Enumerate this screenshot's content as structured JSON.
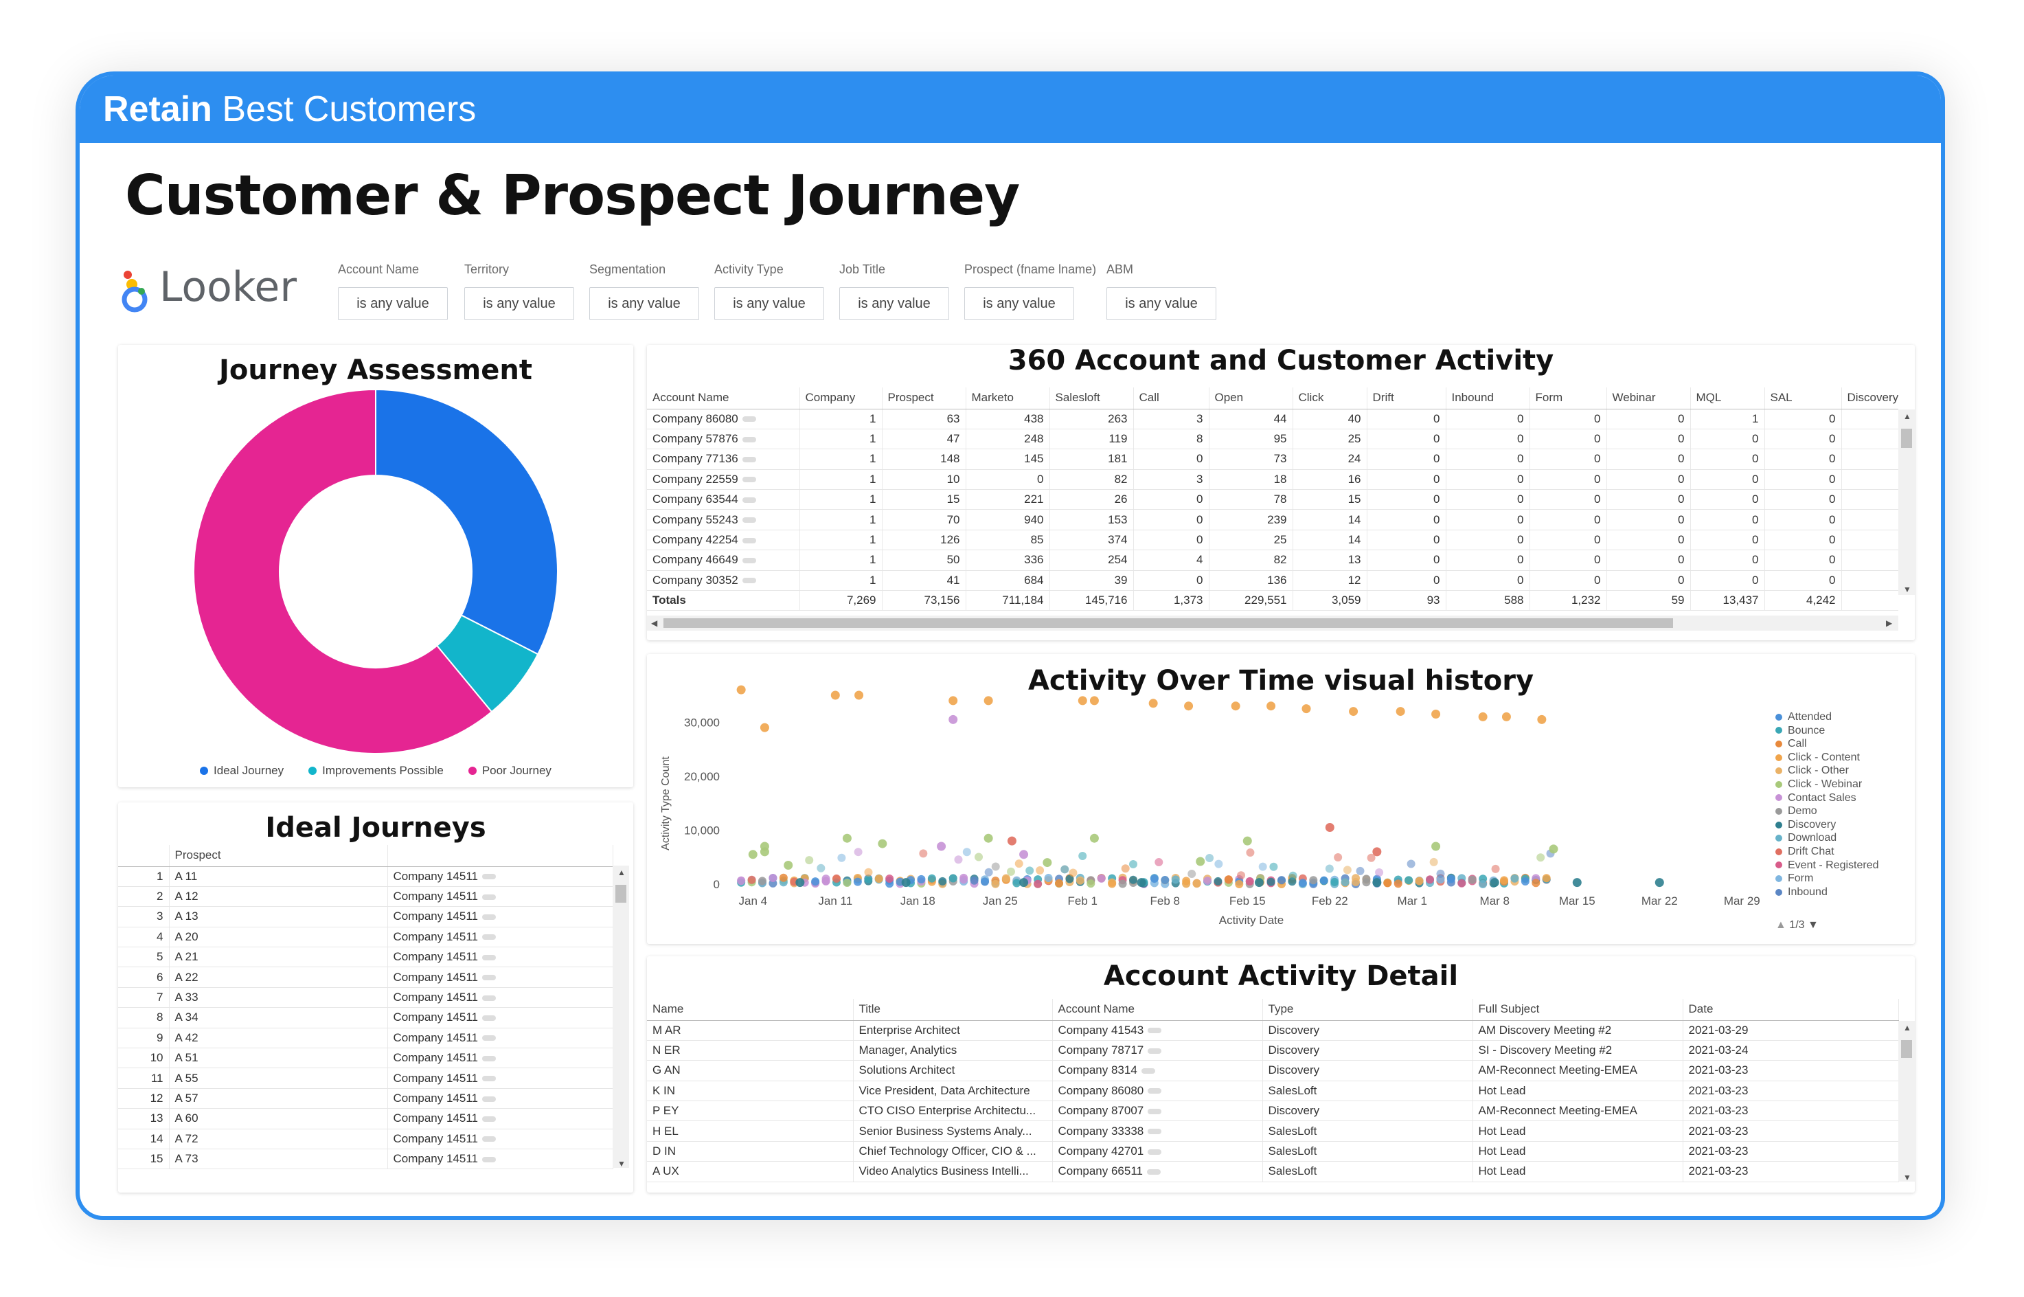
{
  "banner": {
    "bold": "Retain",
    "rest": " Best Customers"
  },
  "page_title": "Customer & Prospect Journey",
  "logo_text": "Looker",
  "filters": [
    {
      "label": "Account Name",
      "value": "is any value"
    },
    {
      "label": "Territory",
      "value": "is any value"
    },
    {
      "label": "Segmentation",
      "value": "is any value"
    },
    {
      "label": "Activity Type",
      "value": "is any value"
    },
    {
      "label": "Job Title",
      "value": "is any value"
    },
    {
      "label": "Prospect (fname lname)",
      "value": "is any value"
    },
    {
      "label": "ABM",
      "value": "is any value"
    }
  ],
  "journey_assessment": {
    "title": "Journey Assessment",
    "colors": [
      "#1a73e8",
      "#12b5cb",
      "#e52592"
    ],
    "chart_data": {
      "type": "pie",
      "categories": [
        "Ideal Journey",
        "Improvements Possible",
        "Poor Journey"
      ],
      "values": [
        32.5,
        6.5,
        61.0
      ]
    }
  },
  "ideal_journeys": {
    "title": "Ideal Journeys",
    "header": "Prospect",
    "rows": [
      [
        "1",
        "A 11",
        "Company 14511"
      ],
      [
        "2",
        "A 12",
        "Company 14511"
      ],
      [
        "3",
        "A 13",
        "Company 14511"
      ],
      [
        "4",
        "A 20",
        "Company 14511"
      ],
      [
        "5",
        "A 21",
        "Company 14511"
      ],
      [
        "6",
        "A 22",
        "Company 14511"
      ],
      [
        "7",
        "A 33",
        "Company 14511"
      ],
      [
        "8",
        "A 34",
        "Company 14511"
      ],
      [
        "9",
        "A 42",
        "Company 14511"
      ],
      [
        "10",
        "A 51",
        "Company 14511"
      ],
      [
        "11",
        "A 55",
        "Company 14511"
      ],
      [
        "12",
        "A 57",
        "Company 14511"
      ],
      [
        "13",
        "A 60",
        "Company 14511"
      ],
      [
        "14",
        "A 72",
        "Company 14511"
      ],
      [
        "15",
        "A 73",
        "Company 14511"
      ]
    ]
  },
  "account_360": {
    "title": "360 Account and Customer Activity",
    "columns": [
      "Account Name",
      "Company",
      "Prospect",
      "Marketo",
      "Salesloft",
      "Call",
      "Open",
      "Click",
      "Drift",
      "Inbound",
      "Form",
      "Webinar",
      "MQL",
      "SAL",
      "Discovery"
    ],
    "rows": [
      [
        "Company 86080",
        "1",
        "63",
        "438",
        "263",
        "3",
        "44",
        "40",
        "0",
        "0",
        "0",
        "0",
        "1",
        "0",
        ""
      ],
      [
        "Company 57876",
        "1",
        "47",
        "248",
        "119",
        "8",
        "95",
        "25",
        "0",
        "0",
        "0",
        "0",
        "0",
        "0",
        ""
      ],
      [
        "Company 77136",
        "1",
        "148",
        "145",
        "181",
        "0",
        "73",
        "24",
        "0",
        "0",
        "0",
        "0",
        "0",
        "0",
        ""
      ],
      [
        "Company 22559",
        "1",
        "10",
        "0",
        "82",
        "3",
        "18",
        "16",
        "0",
        "0",
        "0",
        "0",
        "0",
        "0",
        ""
      ],
      [
        "Company 63544",
        "1",
        "15",
        "221",
        "26",
        "0",
        "78",
        "15",
        "0",
        "0",
        "0",
        "0",
        "0",
        "0",
        ""
      ],
      [
        "Company 55243",
        "1",
        "70",
        "940",
        "153",
        "0",
        "239",
        "14",
        "0",
        "0",
        "0",
        "0",
        "0",
        "0",
        ""
      ],
      [
        "Company 42254",
        "1",
        "126",
        "85",
        "374",
        "0",
        "25",
        "14",
        "0",
        "0",
        "0",
        "0",
        "0",
        "0",
        ""
      ],
      [
        "Company 46649",
        "1",
        "50",
        "336",
        "254",
        "4",
        "82",
        "13",
        "0",
        "0",
        "0",
        "0",
        "0",
        "0",
        ""
      ],
      [
        "Company 30352",
        "1",
        "41",
        "684",
        "39",
        "0",
        "136",
        "12",
        "0",
        "0",
        "0",
        "0",
        "0",
        "0",
        ""
      ]
    ],
    "totals": [
      "Totals",
      "7,269",
      "73,156",
      "711,184",
      "145,716",
      "1,373",
      "229,551",
      "3,059",
      "93",
      "588",
      "1,232",
      "59",
      "13,437",
      "4,242",
      ""
    ]
  },
  "activity_over_time": {
    "title": "Activity Over Time visual history",
    "xlabel": "Activity Date",
    "ylabel": "Activity Type Count",
    "pager": "1/3",
    "legend": [
      {
        "name": "Attended",
        "color": "#4a90d9"
      },
      {
        "name": "Bounce",
        "color": "#3aa7b5"
      },
      {
        "name": "Call",
        "color": "#e8893c"
      },
      {
        "name": "Click - Content",
        "color": "#f0a44b"
      },
      {
        "name": "Click - Other",
        "color": "#eab267"
      },
      {
        "name": "Click - Webinar",
        "color": "#a8c97a"
      },
      {
        "name": "Contact Sales",
        "color": "#c792d6"
      },
      {
        "name": "Demo",
        "color": "#9a9a9a"
      },
      {
        "name": "Discovery",
        "color": "#2f7f8f"
      },
      {
        "name": "Download",
        "color": "#67b2c9"
      },
      {
        "name": "Drift Chat",
        "color": "#e06f61"
      },
      {
        "name": "Event - Registered",
        "color": "#d85c8a"
      },
      {
        "name": "Form",
        "color": "#7fb6e0"
      },
      {
        "name": "Inbound",
        "color": "#5b86c4"
      }
    ],
    "chart_data": {
      "type": "scatter",
      "x_tick_labels": [
        "Jan 4",
        "Jan 11",
        "Jan 18",
        "Jan 25",
        "Feb 1",
        "Feb 8",
        "Feb 15",
        "Feb 22",
        "Mar 1",
        "Mar 8",
        "Mar 15",
        "Mar 22",
        "Mar 29"
      ],
      "y_tick_labels": [
        "0",
        "10,000",
        "20,000",
        "30,000"
      ],
      "ylim": [
        0,
        35000
      ],
      "series": [
        {
          "name": "Click - Content",
          "color": "#f0a44b",
          "points": [
            [
              1,
              36000
            ],
            [
              3,
              29000
            ],
            [
              9,
              35000
            ],
            [
              11,
              35000
            ],
            [
              19,
              34000
            ],
            [
              22,
              34000
            ],
            [
              30,
              34000
            ],
            [
              31,
              34000
            ],
            [
              36,
              33500
            ],
            [
              39,
              33000
            ],
            [
              43,
              33000
            ],
            [
              46,
              33000
            ],
            [
              49,
              32500
            ],
            [
              53,
              32000
            ],
            [
              57,
              32000
            ],
            [
              60,
              31500
            ],
            [
              64,
              31000
            ],
            [
              66,
              31000
            ],
            [
              69,
              30500
            ]
          ]
        },
        {
          "name": "Contact Sales",
          "color": "#c792d6",
          "points": [
            [
              19,
              30500
            ],
            [
              18,
              7000
            ],
            [
              25,
              5500
            ]
          ]
        },
        {
          "name": "Click - Webinar",
          "color": "#a8c97a",
          "points": [
            [
              3,
              6000
            ],
            [
              2,
              5500
            ],
            [
              3,
              7000
            ],
            [
              10,
              8500
            ],
            [
              13,
              7500
            ],
            [
              22,
              8500
            ],
            [
              31,
              8500
            ],
            [
              44,
              8000
            ],
            [
              60,
              7000
            ],
            [
              70,
              6500
            ],
            [
              5,
              3500
            ],
            [
              27,
              4000
            ],
            [
              40,
              4200
            ]
          ]
        },
        {
          "name": "Drift Chat",
          "color": "#e06f61",
          "points": [
            [
              51,
              10500
            ],
            [
              24,
              8000
            ],
            [
              55,
              6000
            ]
          ]
        },
        {
          "name": "Discovery",
          "color": "#2f7f8f",
          "points": [
            [
              6,
              300
            ],
            [
              15,
              300
            ],
            [
              25,
              300
            ],
            [
              35,
              300
            ],
            [
              45,
              300
            ],
            [
              55,
              300
            ],
            [
              65,
              300
            ],
            [
              72,
              300
            ],
            [
              79,
              300
            ]
          ]
        }
      ]
    }
  },
  "account_activity_detail": {
    "title": "Account Activity Detail",
    "columns": [
      "Name",
      "Title",
      "Account Name",
      "Type",
      "Full Subject",
      "Date"
    ],
    "rows": [
      [
        "M AR",
        "Enterprise Architect",
        "Company 41543",
        "Discovery",
        "AM Discovery Meeting #2",
        "2021-03-29"
      ],
      [
        "N ER",
        "Manager, Analytics",
        "Company 78717",
        "Discovery",
        "SI - Discovery Meeting #2",
        "2021-03-24"
      ],
      [
        "G AN",
        "Solutions Architect",
        "Company 8314",
        "Discovery",
        "AM-Reconnect Meeting-EMEA",
        "2021-03-23"
      ],
      [
        "K IN",
        "Vice President, Data Architecture",
        "Company 86080",
        "SalesLoft",
        "Hot Lead",
        "2021-03-23"
      ],
      [
        "P EY",
        "CTO CISO Enterprise Architectu...",
        "Company 87007",
        "Discovery",
        "AM-Reconnect Meeting-EMEA",
        "2021-03-23"
      ],
      [
        "H EL",
        "Senior Business Systems Analy...",
        "Company 33338",
        "SalesLoft",
        "Hot Lead",
        "2021-03-23"
      ],
      [
        "D IN",
        "Chief Technology Officer, CIO & ...",
        "Company 42701",
        "SalesLoft",
        "Hot Lead",
        "2021-03-23"
      ],
      [
        "A UX",
        "Video Analytics Business Intelli...",
        "Company 66511",
        "SalesLoft",
        "Hot Lead",
        "2021-03-23"
      ]
    ]
  }
}
